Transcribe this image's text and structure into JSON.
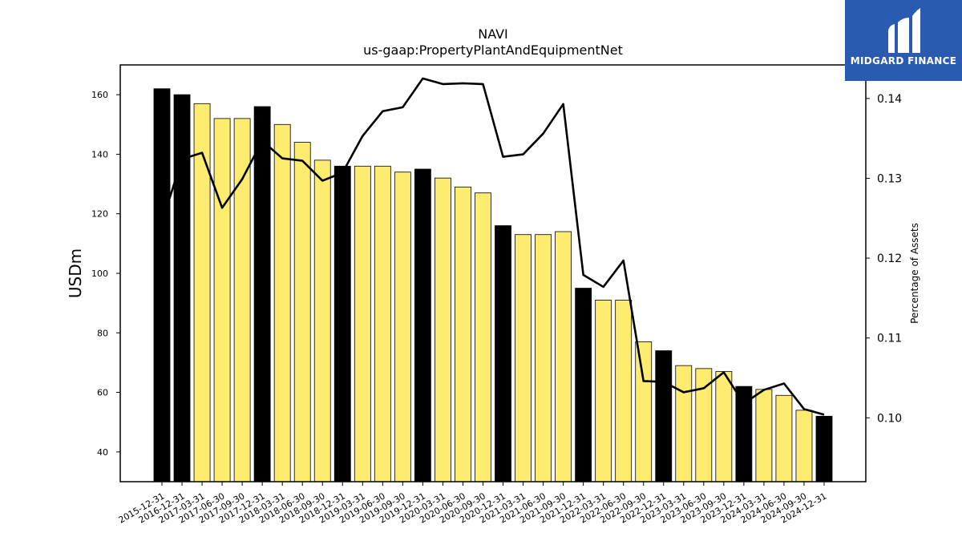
{
  "chart_data": {
    "type": "bar",
    "title": "NAVI",
    "subtitle": "us-gaap:PropertyPlantAndEquipmentNet",
    "ylabel": "USDm",
    "y2label": "Percentage of Assets",
    "ylim": [
      30,
      170
    ],
    "y2lim": [
      0.092,
      0.1442
    ],
    "yticks": [
      40,
      60,
      80,
      100,
      120,
      140,
      160
    ],
    "y2ticks": [
      0.1,
      0.11,
      0.12,
      0.13,
      0.14
    ],
    "y2tick_labels": [
      "0.10",
      "0.11",
      "0.12",
      "0.13",
      "0.14"
    ],
    "categories": [
      "2015-12-31",
      "2016-12-31",
      "2017-03-31",
      "2017-06-30",
      "2017-09-30",
      "2017-12-31",
      "2018-03-31",
      "2018-06-30",
      "2018-09-30",
      "2018-12-31",
      "2019-03-31",
      "2019-06-30",
      "2019-09-30",
      "2019-12-31",
      "2020-03-31",
      "2020-06-30",
      "2020-09-30",
      "2020-12-31",
      "2021-03-31",
      "2021-06-30",
      "2021-09-30",
      "2021-12-31",
      "2022-03-31",
      "2022-06-30",
      "2022-09-30",
      "2022-12-31",
      "2023-03-31",
      "2023-06-30",
      "2023-09-30",
      "2023-12-31",
      "2024-03-31",
      "2024-06-30",
      "2024-09-30",
      "2024-12-31"
    ],
    "series": [
      {
        "kind": "bar",
        "values": [
          162,
          160,
          157,
          152,
          152,
          156,
          150,
          144,
          138,
          136,
          136,
          136,
          134,
          135,
          132,
          129,
          127,
          116,
          113,
          113,
          114,
          95,
          91,
          91,
          77,
          74,
          69,
          68,
          67,
          62,
          61,
          59,
          54,
          52
        ],
        "annual": [
          true,
          true,
          false,
          false,
          false,
          true,
          false,
          false,
          false,
          true,
          false,
          false,
          false,
          true,
          false,
          false,
          false,
          true,
          false,
          false,
          false,
          true,
          false,
          false,
          false,
          true,
          false,
          false,
          false,
          true,
          false,
          false,
          false,
          true
        ],
        "color_annual": "#000000",
        "color_quarterly": "#fdec70"
      },
      {
        "kind": "line",
        "axis": "right",
        "values": [
          0.1245,
          0.1324,
          0.1332,
          0.1263,
          0.1299,
          0.1347,
          0.1325,
          0.1322,
          0.1297,
          0.1307,
          0.1353,
          0.1384,
          0.1389,
          0.1425,
          0.1418,
          0.1419,
          0.1418,
          0.1327,
          0.133,
          0.1356,
          0.1393,
          0.1179,
          0.1164,
          0.1197,
          0.1046,
          0.1045,
          0.1032,
          0.1037,
          0.1057,
          0.1018,
          0.1035,
          0.1043,
          0.1011,
          0.1004
        ],
        "color": "#000000"
      }
    ],
    "grid": false
  },
  "logo": {
    "text": "MIDGARD FINANCE",
    "bg_color": "#2b5bb0",
    "icon": "midgard-m-logo-icon"
  }
}
